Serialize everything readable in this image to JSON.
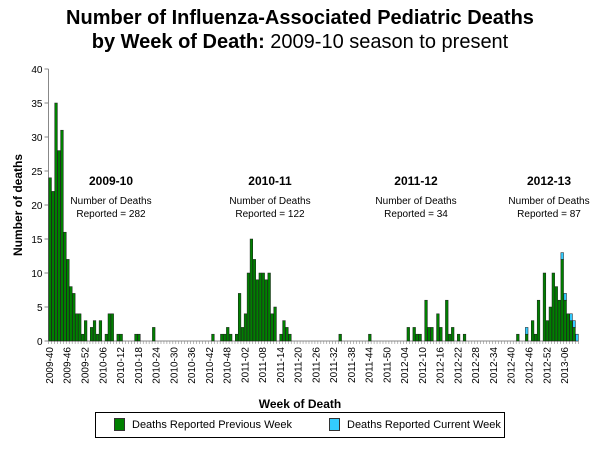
{
  "chart_data": {
    "type": "bar",
    "stacked": true,
    "title_bold": "Number of Influenza-Associated Pediatric Deaths",
    "title_line2_bold": "by Week of Death:",
    "title_line2_normal": " 2009-10 season to present",
    "xlabel": "Week of Death",
    "ylabel": "Number of deaths",
    "ylim": [
      0,
      40
    ],
    "yticks": [
      0,
      5,
      10,
      15,
      20,
      25,
      30,
      35,
      40
    ],
    "x_start_week": "2009-40",
    "num_weeks": 178,
    "xtick_labels": [
      "2009-40",
      "2009-46",
      "2009-52",
      "2010-06",
      "2010-12",
      "2010-18",
      "2010-24",
      "2010-30",
      "2010-36",
      "2010-42",
      "2010-48",
      "2011-02",
      "2011-08",
      "2011-14",
      "2011-20",
      "2011-26",
      "2011-32",
      "2011-38",
      "2011-44",
      "2011-50",
      "2012-04",
      "2012-10",
      "2012-16",
      "2012-22",
      "2012-28",
      "2012-34",
      "2012-40",
      "2012-46",
      "2012-52",
      "2013-06"
    ],
    "series": [
      {
        "name": "Deaths Reported Previous Week",
        "color": "#008000",
        "points": {
          "0": 24,
          "1": 22,
          "2": 35,
          "3": 28,
          "4": 31,
          "5": 16,
          "6": 12,
          "7": 8,
          "8": 7,
          "9": 4,
          "10": 4,
          "11": 1,
          "12": 3,
          "14": 2,
          "15": 3,
          "16": 1,
          "17": 3,
          "19": 1,
          "20": 4,
          "21": 4,
          "23": 1,
          "24": 1,
          "29": 1,
          "30": 1,
          "35": 2,
          "55": 1,
          "58": 1,
          "59": 1,
          "60": 2,
          "61": 1,
          "63": 1,
          "64": 7,
          "65": 2,
          "66": 4,
          "67": 10,
          "68": 15,
          "69": 12,
          "70": 9,
          "71": 10,
          "72": 10,
          "73": 9,
          "74": 10,
          "75": 4,
          "76": 5,
          "78": 1,
          "79": 3,
          "80": 2,
          "81": 1,
          "98": 1,
          "108": 1,
          "121": 2,
          "123": 2,
          "124": 1,
          "125": 1,
          "127": 6,
          "128": 2,
          "129": 2,
          "131": 4,
          "132": 2,
          "134": 6,
          "135": 1,
          "136": 2,
          "138": 1,
          "140": 1,
          "158": 1,
          "161": 1,
          "163": 3,
          "164": 1,
          "165": 6,
          "167": 10,
          "168": 3,
          "169": 5,
          "170": 10,
          "171": 8,
          "172": 6,
          "173": 12,
          "174": 6,
          "175": 4,
          "176": 3,
          "177": 2
        }
      },
      {
        "name": "Deaths Reported Current Week",
        "color": "#33ccff",
        "points": {
          "161": 1,
          "173": 1,
          "174": 1,
          "176": 1,
          "177": 1,
          "178": 1
        }
      }
    ],
    "annotations": [
      {
        "season": "2009-10",
        "text1": "Number of Deaths",
        "text2": "Reported = 282"
      },
      {
        "season": "2010-11",
        "text1": "Number of Deaths",
        "text2": "Reported = 122"
      },
      {
        "season": "2011-12",
        "text1": "Number of Deaths",
        "text2": "Reported = 34"
      },
      {
        "season": "2012-13",
        "text1": "Number of Deaths",
        "text2": "Reported = 87"
      }
    ],
    "legend": {
      "placement": "bottom",
      "items": [
        {
          "label": "Deaths Reported Previous Week",
          "color": "#008000"
        },
        {
          "label": "Deaths Reported Current Week",
          "color": "#33ccff"
        }
      ]
    }
  }
}
